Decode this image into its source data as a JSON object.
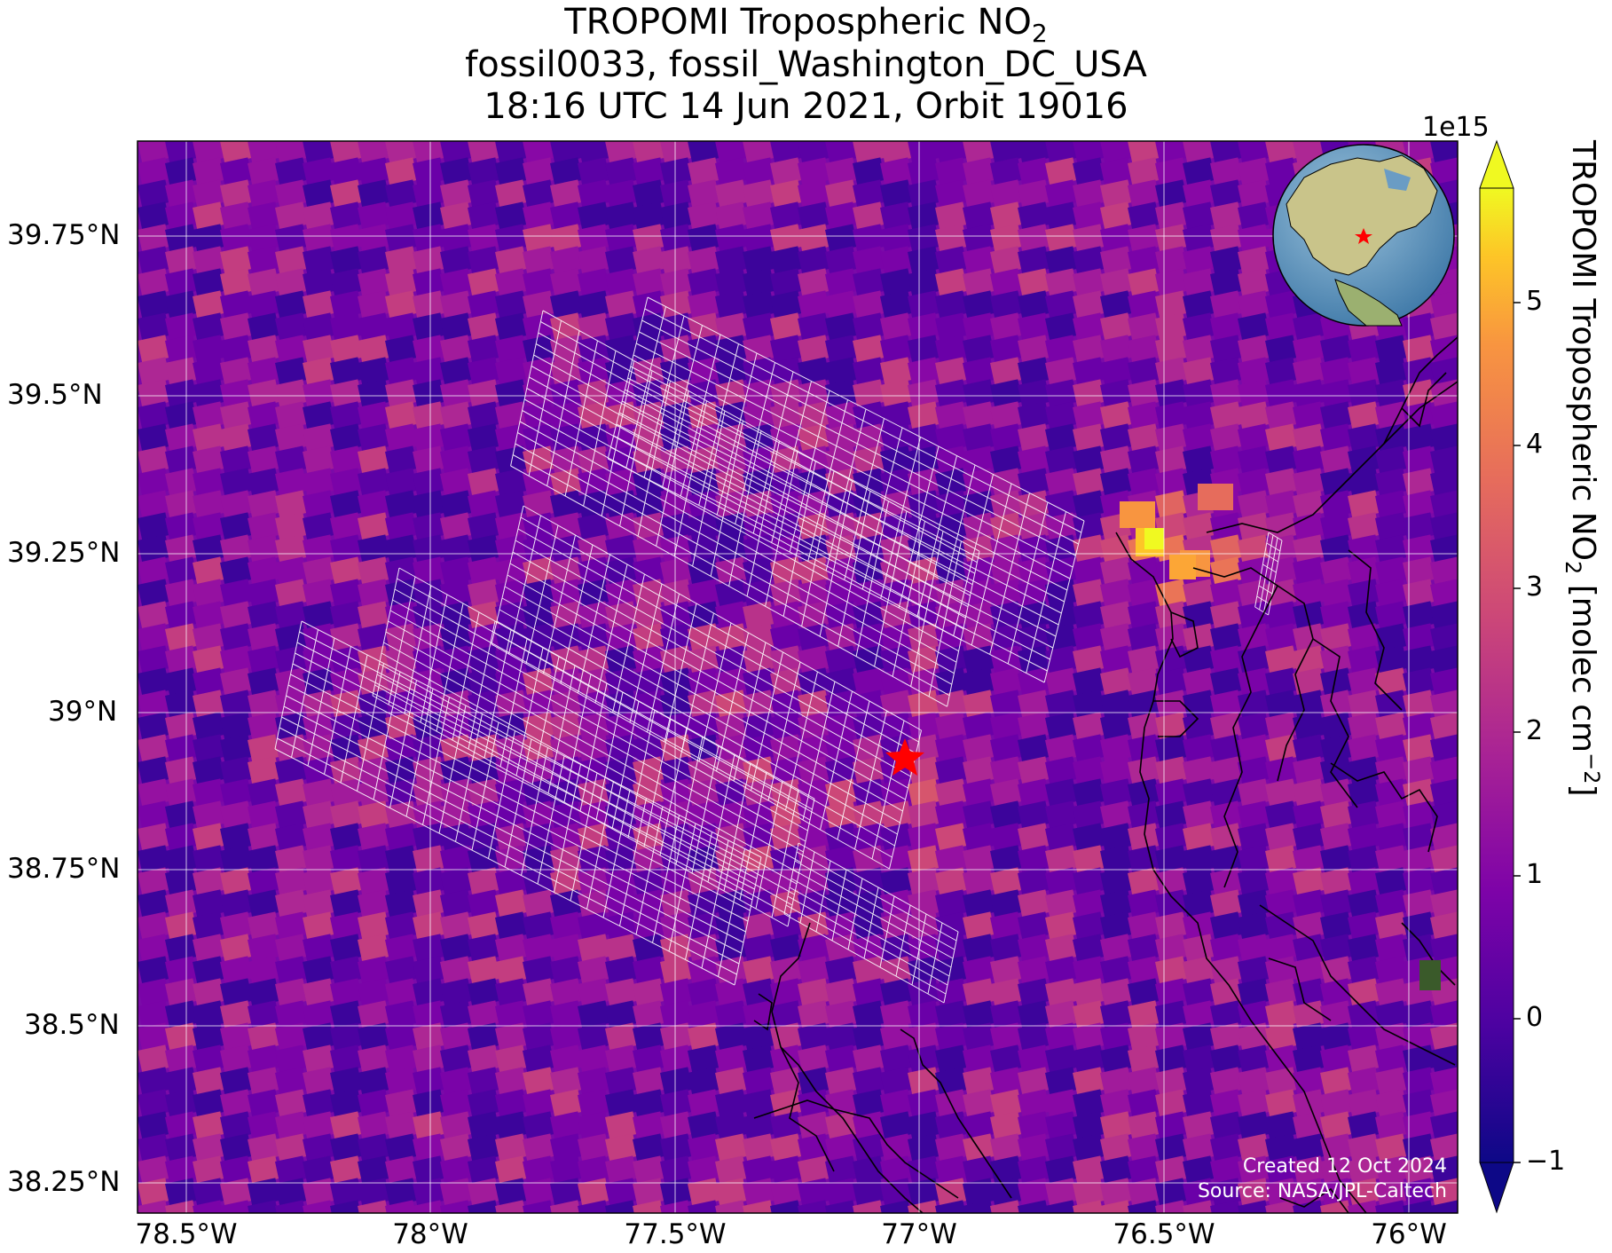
{
  "title": {
    "line1": "TROPOMI Tropospheric NO",
    "line1_sub": "2",
    "line2": "fossil0033, fossil_Washington_DC_USA",
    "line3": "18:16 UTC 14 Jun 2021, Orbit 19016"
  },
  "map": {
    "lon_range": [
      -78.6,
      -75.9
    ],
    "lat_range": [
      38.2,
      39.9
    ],
    "lat_labels": [
      "39.75°N",
      "39.5°N",
      "39.25°N",
      "39°N",
      "38.75°N",
      "38.5°N",
      "38.25°N"
    ],
    "lon_labels": [
      "78.5°W",
      "78°W",
      "77.5°W",
      "77°W",
      "76.5°W",
      "76°W"
    ],
    "gridlines": true,
    "colormap": "plasma",
    "target_marker": "red-star",
    "inset": "globe-north-america-with-red-star"
  },
  "colorbar": {
    "exponent": "1e15",
    "ticks": [
      "5",
      "4",
      "3",
      "2",
      "1",
      "0",
      "−1"
    ],
    "range": [
      -1,
      5.7
    ],
    "extend": "both",
    "label_main": "TROPOMI Tropospheric NO",
    "label_sub": "2",
    "label_units": " [molec cm",
    "label_sup": "−2",
    "label_end": "]"
  },
  "credit": {
    "created": "Created 12 Oct 2024",
    "source": "Source: NASA/JPL-Caltech"
  },
  "colors": {
    "marker": "#ff0000",
    "grid": "#ffffff",
    "coast": "#000000"
  }
}
